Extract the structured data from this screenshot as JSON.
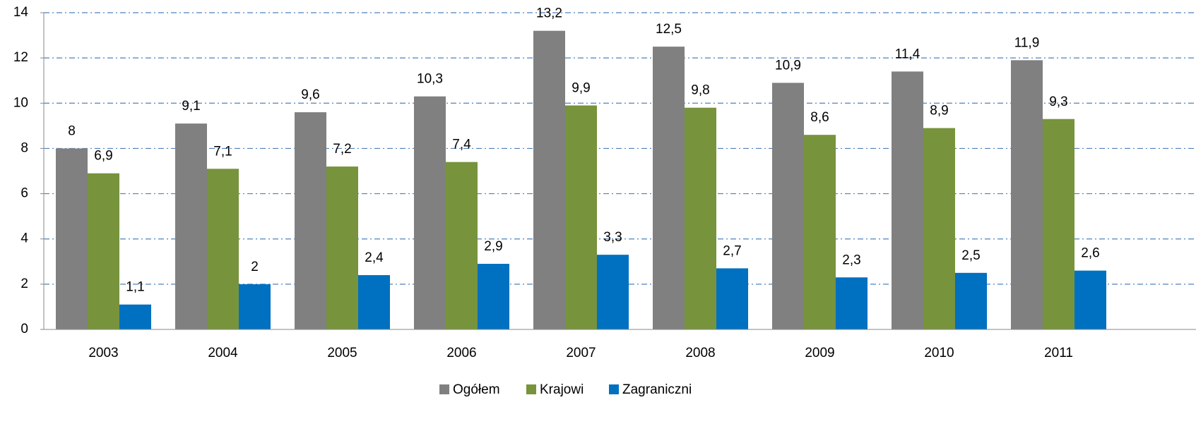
{
  "chart_data": {
    "type": "bar",
    "categories": [
      "2003",
      "2004",
      "2005",
      "2006",
      "2007",
      "2008",
      "2009",
      "2010",
      "2011"
    ],
    "series": [
      {
        "name": "Ogółem",
        "color": "#808080",
        "values": [
          8,
          9.1,
          9.6,
          10.3,
          13.2,
          12.5,
          10.9,
          11.4,
          11.9
        ],
        "value_labels": [
          "8",
          "9,1",
          "9,6",
          "10,3",
          "13,2",
          "12,5",
          "10,9",
          "11,4",
          "11,9"
        ]
      },
      {
        "name": "Krajowi",
        "color": "#77933c",
        "values": [
          6.9,
          7.1,
          7.2,
          7.4,
          9.9,
          9.8,
          8.6,
          8.9,
          9.3
        ],
        "value_labels": [
          "6,9",
          "7,1",
          "7,2",
          "7,4",
          "9,9",
          "9,8",
          "8,6",
          "8,9",
          "9,3"
        ]
      },
      {
        "name": "Zagraniczni",
        "color": "#0070c0",
        "values": [
          1.1,
          2,
          2.4,
          2.9,
          3.3,
          2.7,
          2.3,
          2.5,
          2.6
        ],
        "value_labels": [
          "1,1",
          "2",
          "2,4",
          "2,9",
          "3,3",
          "2,7",
          "2,3",
          "2,5",
          "2,6"
        ]
      }
    ],
    "ylim": [
      0,
      14
    ],
    "yticks": [
      0,
      2,
      4,
      6,
      8,
      10,
      12,
      14
    ],
    "grid": true,
    "legend": "bottom"
  }
}
